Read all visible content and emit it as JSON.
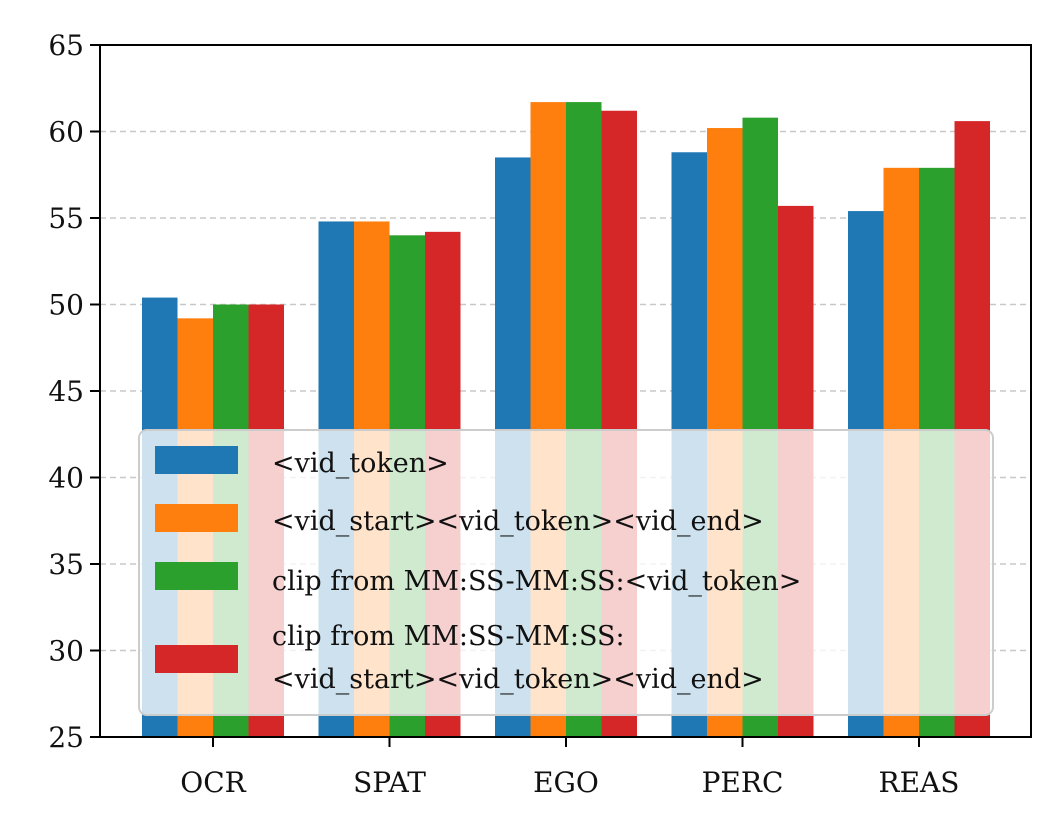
{
  "chart_data": {
    "type": "bar",
    "categories": [
      "OCR",
      "SPAT",
      "EGO",
      "PERC",
      "REAS"
    ],
    "series": [
      {
        "name": "<vid_token>",
        "color": "#1f77b4",
        "values": [
          50.4,
          54.8,
          58.5,
          58.8,
          55.4
        ]
      },
      {
        "name": "<vid_start><vid_token><vid_end>",
        "color": "#ff7f0e",
        "values": [
          49.2,
          54.8,
          61.7,
          60.2,
          57.9
        ]
      },
      {
        "name": "clip from MM:SS-MM:SS:<vid_token>",
        "color": "#2ca02c",
        "values": [
          50.0,
          54.0,
          61.7,
          60.8,
          57.9
        ]
      },
      {
        "name": "clip from MM:SS-MM:SS:\n<vid_start><vid_token><vid_end>",
        "color": "#d62728",
        "values": [
          50.0,
          54.2,
          61.2,
          55.7,
          60.6
        ]
      }
    ],
    "title": "",
    "xlabel": "",
    "ylabel": "",
    "ylim": [
      25,
      65
    ],
    "yticks": [
      25,
      30,
      35,
      40,
      45,
      50,
      55,
      60,
      65
    ],
    "grid": "y-dashed",
    "legend_position": "lower-center"
  }
}
